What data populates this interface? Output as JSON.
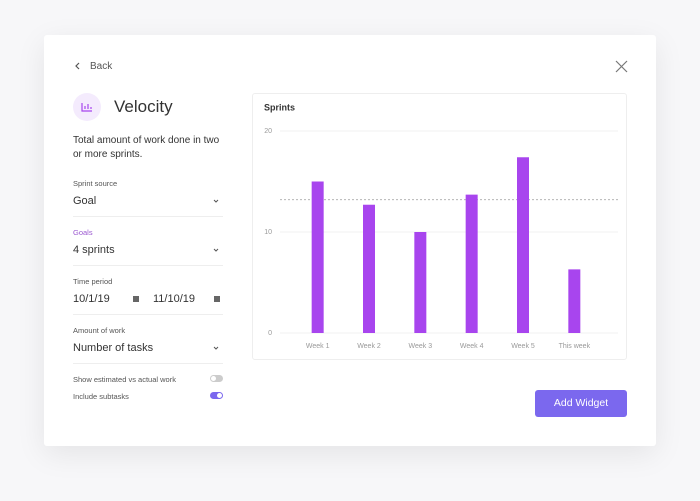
{
  "header": {
    "back": "Back",
    "title": "Velocity",
    "description": "Total amount of work done in two or more sprints."
  },
  "fields": [
    {
      "label": "Sprint source",
      "value": "Goal"
    },
    {
      "label": "Goals",
      "value": "4 sprints"
    },
    {
      "label": "Time period",
      "start": "10/1/19",
      "end": "11/10/19"
    },
    {
      "label": "Amount of work",
      "value": "Number of tasks"
    }
  ],
  "toggles": [
    {
      "label": "Show estimated vs actual work",
      "on": false
    },
    {
      "label": "Include subtasks",
      "on": true
    }
  ],
  "button": "Add Widget",
  "chart_data": {
    "type": "bar",
    "title": "Sprints",
    "categories": [
      "Week 1",
      "Week 2",
      "Week 3",
      "Week 4",
      "Week 5",
      "This week"
    ],
    "values": [
      15,
      12.7,
      10,
      13.7,
      17.4,
      6.3
    ],
    "color": "#a845ee",
    "ylim": [
      0,
      20
    ],
    "yticks": [
      0,
      10,
      20
    ],
    "grid": true,
    "reference_line": 13.2
  }
}
